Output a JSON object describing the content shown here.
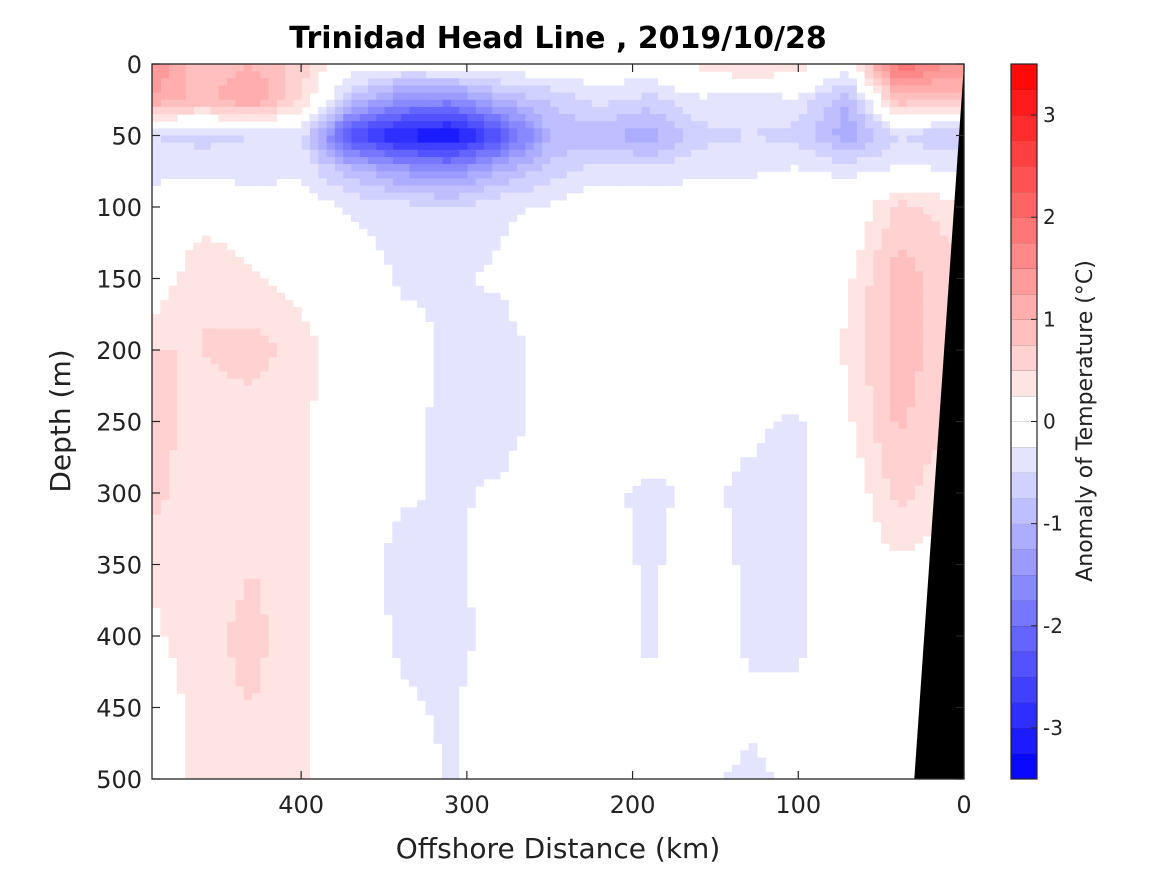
{
  "chart_data": {
    "type": "heatmap",
    "title": "Trinidad Head Line , 2019/10/28",
    "xlabel": "Offshore Distance (km)",
    "ylabel": "Depth (m)",
    "x_reversed": true,
    "y_reversed": true,
    "xlim": [
      0,
      490
    ],
    "ylim": [
      0,
      500
    ],
    "xticks": [
      400,
      300,
      200,
      100,
      0
    ],
    "yticks": [
      0,
      50,
      100,
      150,
      200,
      250,
      300,
      350,
      400,
      450,
      500
    ],
    "colorbar": {
      "label": "Anomaly of Temperature (°C)",
      "range": [
        -3.5,
        3.5
      ],
      "step": 0.25,
      "ticks": [
        3,
        2,
        1,
        0,
        -1,
        -2,
        -3
      ],
      "colors": {
        "negative": "#0000ff",
        "zero": "#ffffff",
        "positive": "#ff0000"
      }
    },
    "grid_distance_km": [
      490,
      460,
      430,
      400,
      370,
      340,
      310,
      280,
      250,
      220,
      190,
      160,
      130,
      100,
      70,
      40,
      10
    ],
    "grid_depth_m": [
      0,
      25,
      50,
      75,
      100,
      150,
      200,
      250,
      300,
      350,
      400,
      450,
      500
    ],
    "anomaly_grid": [
      [
        1.5,
        0.8,
        1.0,
        0.6,
        0.0,
        -0.1,
        0.0,
        0.0,
        0.0,
        0.0,
        0.0,
        0.3,
        0.6,
        0.4,
        0.0,
        2.0,
        1.5
      ],
      [
        1.2,
        0.9,
        1.3,
        0.5,
        -0.8,
        -1.5,
        -1.6,
        -1.0,
        -0.7,
        -0.4,
        -0.6,
        -0.3,
        -0.4,
        -0.3,
        -1.0,
        0.9,
        0.8
      ],
      [
        -0.5,
        -0.6,
        -0.5,
        -0.4,
        -2.5,
        -3.1,
        -3.3,
        -2.4,
        -1.0,
        -0.9,
        -1.2,
        -0.6,
        -0.5,
        -0.6,
        -1.2,
        -0.5,
        -0.8
      ],
      [
        -0.3,
        -0.3,
        -0.4,
        -0.3,
        -0.9,
        -1.3,
        -1.5,
        -1.0,
        -0.6,
        -0.4,
        -0.4,
        -0.3,
        -0.3,
        -0.2,
        -0.3,
        -0.2,
        -0.2
      ],
      [
        -0.2,
        0.1,
        0.0,
        0.0,
        -0.3,
        -0.4,
        -0.5,
        -0.3,
        -0.2,
        0.0,
        0.0,
        -0.1,
        0.0,
        0.0,
        -0.1,
        0.6,
        0.4
      ],
      [
        0.0,
        0.5,
        0.3,
        0.1,
        0.0,
        -0.3,
        -0.3,
        -0.2,
        0.0,
        0.2,
        0.1,
        0.0,
        0.1,
        0.0,
        0.2,
        0.9,
        0.6
      ],
      [
        0.5,
        0.5,
        0.6,
        0.4,
        0.0,
        -0.1,
        -0.3,
        -0.4,
        -0.1,
        0.0,
        0.0,
        -0.1,
        -0.1,
        0.0,
        0.3,
        0.9,
        0.6
      ],
      [
        0.6,
        0.4,
        0.4,
        0.3,
        0.0,
        -0.2,
        -0.3,
        -0.4,
        -0.1,
        0.0,
        -0.1,
        -0.2,
        -0.2,
        -0.3,
        0.2,
        0.8,
        0.5
      ],
      [
        0.6,
        0.3,
        0.3,
        0.3,
        0.0,
        -0.2,
        -0.3,
        -0.2,
        0.0,
        -0.2,
        -0.3,
        -0.2,
        -0.3,
        -0.3,
        0.0,
        0.6,
        0.3
      ],
      [
        0.3,
        0.3,
        0.5,
        0.3,
        0.0,
        -0.4,
        -0.3,
        -0.1,
        0.0,
        -0.1,
        -0.3,
        -0.1,
        -0.3,
        -0.3,
        0.0,
        0.2,
        0.1
      ],
      [
        0.2,
        0.4,
        0.6,
        0.3,
        0.0,
        -0.3,
        -0.4,
        -0.1,
        0.0,
        -0.1,
        -0.3,
        0.0,
        -0.3,
        -0.3,
        0.0,
        0.0,
        0.0
      ],
      [
        0.0,
        0.4,
        0.5,
        0.3,
        0.0,
        -0.2,
        -0.3,
        0.0,
        0.0,
        0.0,
        -0.2,
        0.0,
        -0.2,
        -0.2,
        0.0,
        -0.2,
        -0.2
      ],
      [
        0.0,
        0.4,
        0.4,
        0.3,
        0.0,
        0.0,
        -0.3,
        -0.1,
        0.0,
        0.0,
        0.0,
        -0.2,
        -0.3,
        -0.2,
        0.0,
        0.0,
        0.0
      ]
    ],
    "bathymetry_mask": [
      [
        0,
        0
      ],
      [
        0,
        500
      ],
      [
        30,
        500
      ]
    ]
  }
}
